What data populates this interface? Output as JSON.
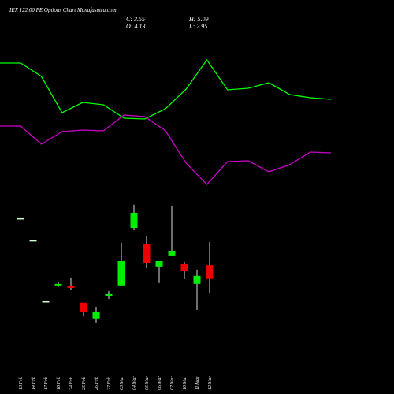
{
  "chart_data": [
    {
      "type": "line",
      "title": "IEX 122.00 PE Options Chart Munafasutra.com",
      "ylim": [
        0,
        125
      ],
      "series": [
        {
          "color": "#00ff00",
          "values": [
            85,
            85,
            76.5,
            53.5,
            60,
            58.5,
            50,
            49.5,
            56,
            68.5,
            87,
            68,
            69,
            72.5,
            65,
            63,
            62
          ]
        },
        {
          "color": "#cc00cc",
          "values": [
            45,
            45,
            33.5,
            41.5,
            42.5,
            42,
            52,
            51,
            42,
            21.5,
            8,
            22.5,
            23,
            16,
            20.5,
            28.5,
            28
          ]
        }
      ]
    },
    {
      "type": "candlestick",
      "summary": [
        "C: 3.55",
        "H: 5.09",
        "O: 4.13",
        "L: 2.95"
      ],
      "categories": [
        "13 Feb",
        "14 Feb",
        "17 Feb",
        "18 Feb",
        "24 Feb",
        "25 Feb",
        "26 Feb",
        "27 Feb",
        "03 Mar",
        "04 Mar",
        "05 Mar",
        "06 Mar",
        "07 Mar",
        "10 Mar",
        "11 Mar",
        "12 Mar"
      ],
      "open": [
        6.08,
        5.16,
        2.62,
        3.25,
        3.25,
        2.56,
        1.87,
        2.85,
        3.25,
        5.68,
        4.99,
        4.04,
        4.5,
        4.17,
        3.35,
        4.13
      ],
      "high": [
        6.08,
        5.16,
        2.62,
        3.41,
        3.58,
        2.56,
        2.39,
        3.05,
        5.06,
        6.64,
        5.35,
        4.3,
        6.57,
        4.27,
        3.91,
        5.09
      ],
      "low": [
        6.08,
        5.16,
        2.62,
        3.22,
        3.08,
        1.98,
        1.7,
        2.69,
        3.25,
        5.58,
        4.0,
        3.38,
        4.5,
        3.54,
        2.23,
        2.95
      ],
      "close": [
        6.08,
        5.16,
        2.62,
        3.35,
        3.15,
        2.16,
        2.16,
        2.92,
        4.3,
        6.31,
        4.2,
        4.3,
        4.73,
        3.87,
        3.68,
        3.55
      ],
      "up_color": "#00ee00",
      "down_color": "#ee0000",
      "ylim": [
        1.5,
        7.0
      ]
    }
  ]
}
